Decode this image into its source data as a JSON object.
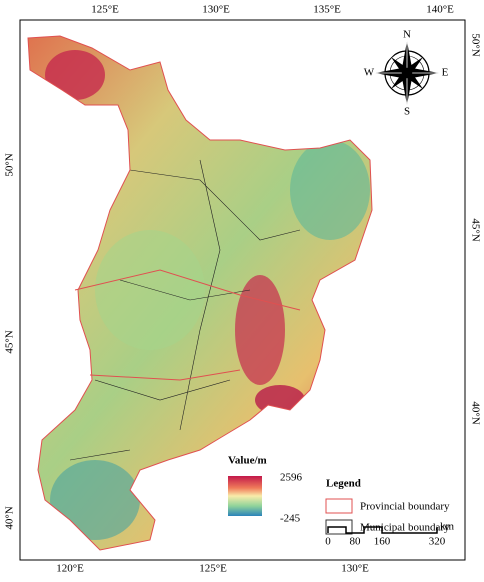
{
  "axes": {
    "top": [
      "125°E",
      "130°E",
      "135°E",
      "140°E"
    ],
    "bottom": [
      "120°E",
      "125°E",
      "130°E"
    ],
    "left": [
      "50°N",
      "45°N",
      "40°N"
    ],
    "right": [
      "50°N",
      "45°N",
      "40°N"
    ]
  },
  "compass": {
    "n": "N",
    "s": "S",
    "w": "W",
    "e": "E"
  },
  "colorbar": {
    "title": "Value/m",
    "max": "2596",
    "min": "-245"
  },
  "legend": {
    "title": "Legend",
    "items": [
      "Provincial boundary",
      "Municipal boundary"
    ]
  },
  "scale_bar": {
    "labels": [
      "0",
      "80",
      "160",
      "320"
    ],
    "unit": "km"
  }
}
